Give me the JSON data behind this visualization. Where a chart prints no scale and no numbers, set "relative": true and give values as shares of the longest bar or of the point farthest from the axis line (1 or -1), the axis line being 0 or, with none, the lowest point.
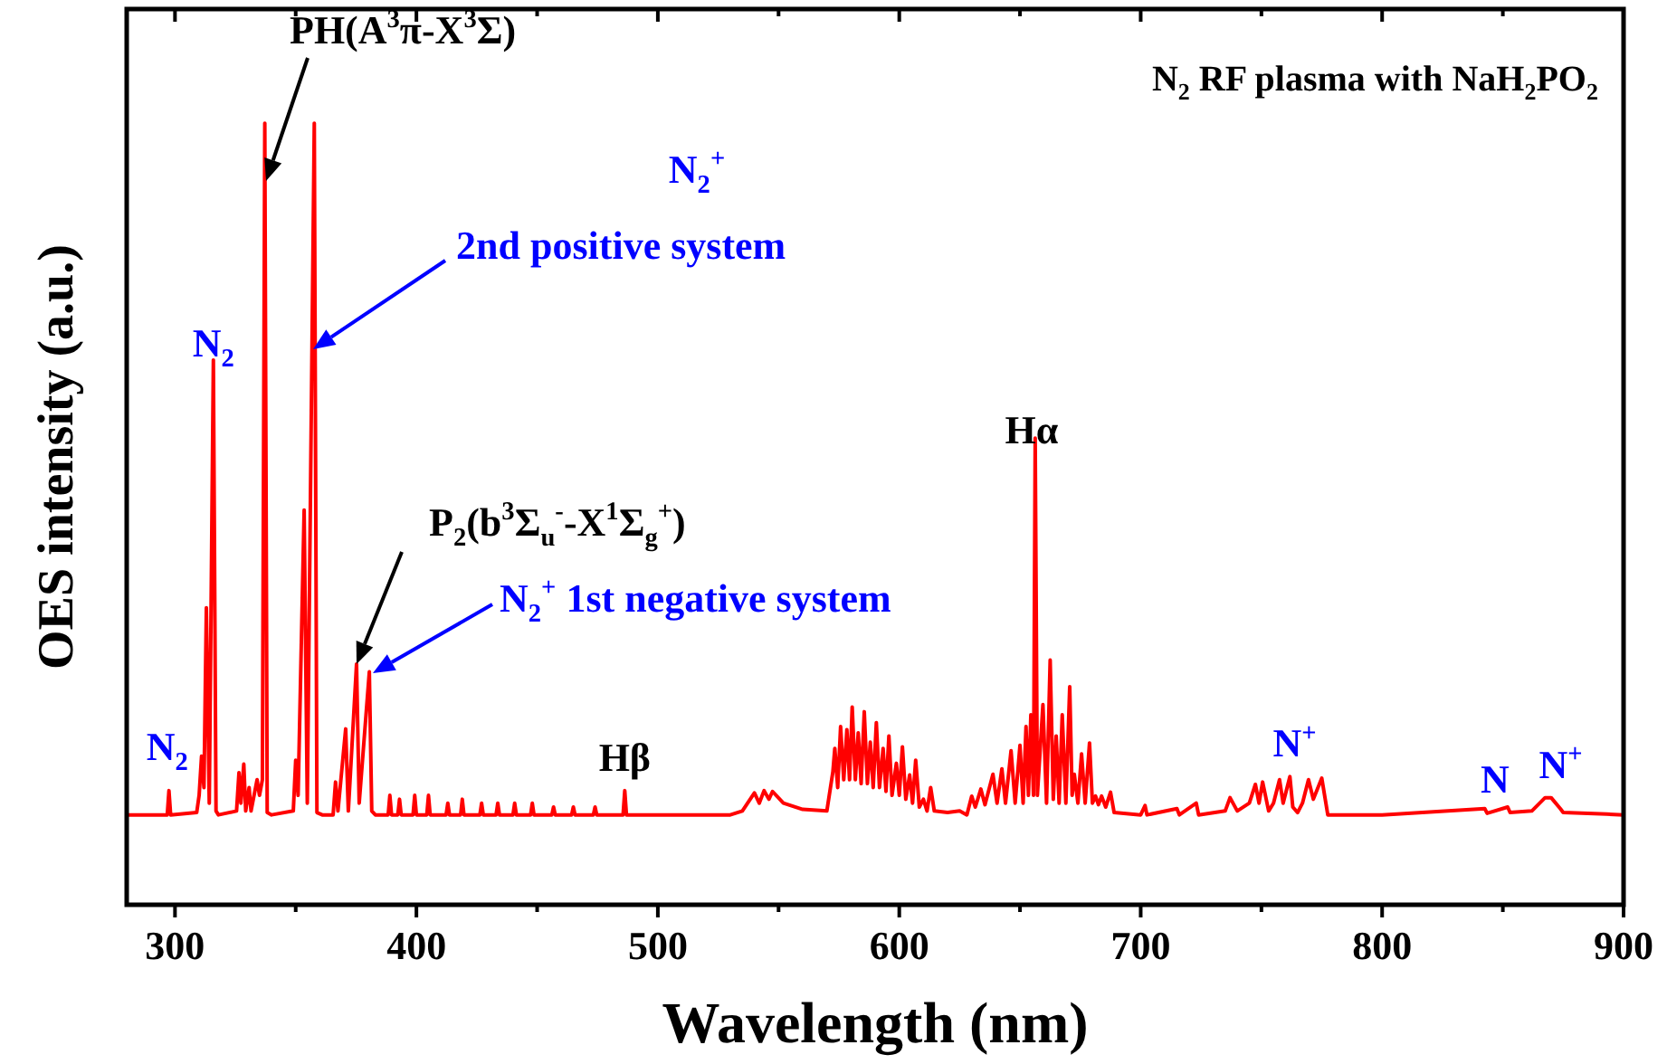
{
  "chart_data": {
    "type": "line",
    "relative": true,
    "title": "N$_{2}$ RF plasma with NaH$_{2}$PO$_{2}$",
    "xlabel": "Wavelength (nm)",
    "ylabel": "OES intensity (a.u.)",
    "xlim": [
      280,
      900
    ],
    "xticks": [
      300,
      {
        "value": 350,
        "label": null
      },
      400,
      {
        "value": 450,
        "label": null
      },
      500,
      {
        "value": 550,
        "label": null
      },
      600,
      {
        "value": 650,
        "label": null
      },
      700,
      {
        "value": 750,
        "label": null
      },
      800,
      {
        "value": 850,
        "label": null
      },
      900
    ],
    "series": [
      {
        "color": "#ff0000",
        "x": [
          280,
          296.8,
          297.5,
          298.2,
          309,
          310,
          311,
          312,
          313,
          314.2,
          315.9,
          317,
          318,
          325.5,
          326.5,
          327.3,
          328.5,
          329.3,
          330.7,
          331.5,
          334,
          335,
          336.2,
          337.2,
          338.2,
          340,
          349,
          350,
          351,
          353.5,
          354.8,
          357.7,
          358.8,
          361,
          365.5,
          366.5,
          367.5,
          370.7,
          371.8,
          375.2,
          376.3,
          380.5,
          381.5,
          383,
          388.3,
          389,
          389.7,
          392.3,
          393,
          393.7,
          398.6,
          399.3,
          400,
          404.3,
          405,
          405.7,
          412.3,
          413,
          413.7,
          418.3,
          419,
          419.7,
          426.3,
          427,
          427.7,
          433,
          433.7,
          434.4,
          440,
          440.7,
          441.4,
          447.3,
          448,
          448.7,
          456.1,
          456.8,
          457.5,
          464.3,
          465,
          465.7,
          473.3,
          474,
          474.7,
          485.6,
          486.3,
          487,
          530,
          535,
          540,
          542,
          544,
          546,
          547.5,
          552,
          560,
          570,
          572.5,
          573.3,
          574.5,
          575.7,
          577,
          578.3,
          579.4,
          580.5,
          581.8,
          583,
          584.2,
          585.5,
          586.8,
          588,
          589.2,
          590.5,
          591.8,
          593.3,
          594.5,
          595.7,
          597,
          598.8,
          600,
          601.3,
          602.7,
          604.3,
          605.5,
          606.8,
          608.3,
          610,
          611.5,
          613,
          614.5,
          620,
          625,
          628,
          630,
          631.5,
          633.8,
          635.5,
          638.8,
          640.5,
          642.5,
          644,
          646.3,
          648,
          650,
          651.3,
          652.5,
          653.5,
          654.5,
          655.6,
          656.3,
          657.2,
          659.5,
          661,
          662.5,
          663.8,
          665,
          666.2,
          667.5,
          669,
          670.6,
          671.6,
          672.5,
          674,
          675.5,
          677,
          678.8,
          680,
          681.3,
          682.5,
          683.8,
          685.5,
          687.5,
          689,
          700,
          701.8,
          702.6,
          715,
          716,
          723,
          724,
          735,
          737,
          740,
          745,
          747.5,
          749,
          750.5,
          753,
          755,
          757.5,
          759,
          761.8,
          763,
          765,
          767,
          769.5,
          771.5,
          775,
          777.5,
          800,
          842.5,
          843.5,
          852,
          853,
          862,
          867.5,
          870,
          873.8,
          875,
          893,
          900
        ],
        "values": [
          0.115,
          0.115,
          0.146,
          0.115,
          0.118,
          0.14,
          0.19,
          0.15,
          0.38,
          0.13,
          0.697,
          0.12,
          0.115,
          0.12,
          0.169,
          0.13,
          0.18,
          0.12,
          0.15,
          0.12,
          0.16,
          0.14,
          0.16,
          1.0,
          0.118,
          0.115,
          0.12,
          0.185,
          0.14,
          0.505,
          0.13,
          1.0,
          0.118,
          0.115,
          0.115,
          0.157,
          0.12,
          0.225,
          0.12,
          0.308,
          0.13,
          0.298,
          0.12,
          0.115,
          0.115,
          0.14,
          0.115,
          0.115,
          0.135,
          0.115,
          0.115,
          0.14,
          0.115,
          0.115,
          0.14,
          0.115,
          0.115,
          0.13,
          0.115,
          0.115,
          0.135,
          0.115,
          0.115,
          0.13,
          0.115,
          0.115,
          0.13,
          0.115,
          0.115,
          0.13,
          0.115,
          0.115,
          0.13,
          0.115,
          0.115,
          0.125,
          0.115,
          0.115,
          0.125,
          0.115,
          0.115,
          0.125,
          0.115,
          0.115,
          0.146,
          0.115,
          0.115,
          0.12,
          0.143,
          0.13,
          0.146,
          0.135,
          0.145,
          0.13,
          0.122,
          0.12,
          0.17,
          0.2,
          0.15,
          0.228,
          0.16,
          0.224,
          0.16,
          0.253,
          0.16,
          0.22,
          0.155,
          0.247,
          0.155,
          0.208,
          0.15,
          0.233,
          0.15,
          0.2,
          0.145,
          0.216,
          0.14,
          0.181,
          0.14,
          0.202,
          0.135,
          0.166,
          0.13,
          0.185,
          0.125,
          0.135,
          0.12,
          0.15,
          0.12,
          0.118,
          0.12,
          0.115,
          0.139,
          0.125,
          0.148,
          0.128,
          0.167,
          0.13,
          0.174,
          0.13,
          0.197,
          0.13,
          0.204,
          0.13,
          0.228,
          0.14,
          0.243,
          0.14,
          0.597,
          0.14,
          0.256,
          0.13,
          0.313,
          0.135,
          0.216,
          0.13,
          0.243,
          0.13,
          0.279,
          0.14,
          0.167,
          0.13,
          0.193,
          0.13,
          0.207,
          0.13,
          0.139,
          0.128,
          0.139,
          0.125,
          0.144,
          0.118,
          0.115,
          0.127,
          0.115,
          0.123,
          0.115,
          0.13,
          0.115,
          0.12,
          0.137,
          0.12,
          0.13,
          0.154,
          0.13,
          0.157,
          0.12,
          0.13,
          0.16,
          0.13,
          0.164,
          0.125,
          0.118,
          0.13,
          0.16,
          0.135,
          0.162,
          0.115,
          0.115,
          0.123,
          0.117,
          0.125,
          0.118,
          0.12,
          0.137,
          0.137,
          0.123,
          0.118,
          0.116,
          0.115
        ]
      }
    ],
    "annotations": [
      {
        "text": "N$_{2}$",
        "x": 297.5,
        "y": 0.146
      },
      {
        "text": "N$_{2}$",
        "x": 315.9,
        "y": 0.697
      },
      "PH(A$^{3}$π-X$^{3}$Σ)",
      "N$_{2}$$^{+}$",
      "2nd positive system",
      "P$_{2}$(b$^{3}$Σ$_{u}$$^{-}$-X$^{1}$Σ$_{g}$$^{+}$)",
      "N$_{2}$$^{+}$ 1st negative system",
      {
        "text": "Hβ",
        "x": 486.3,
        "y": 0.146
      },
      {
        "text": "Hα",
        "x": 656.3,
        "y": 0.597
      },
      {
        "text": "N$^{+}$",
        "x": 760,
        "y": 0.164
      },
      {
        "text": "N",
        "x": 852,
        "y": 0.125
      },
      {
        "text": "N$^{+}$",
        "x": 868,
        "y": 0.137
      }
    ]
  }
}
